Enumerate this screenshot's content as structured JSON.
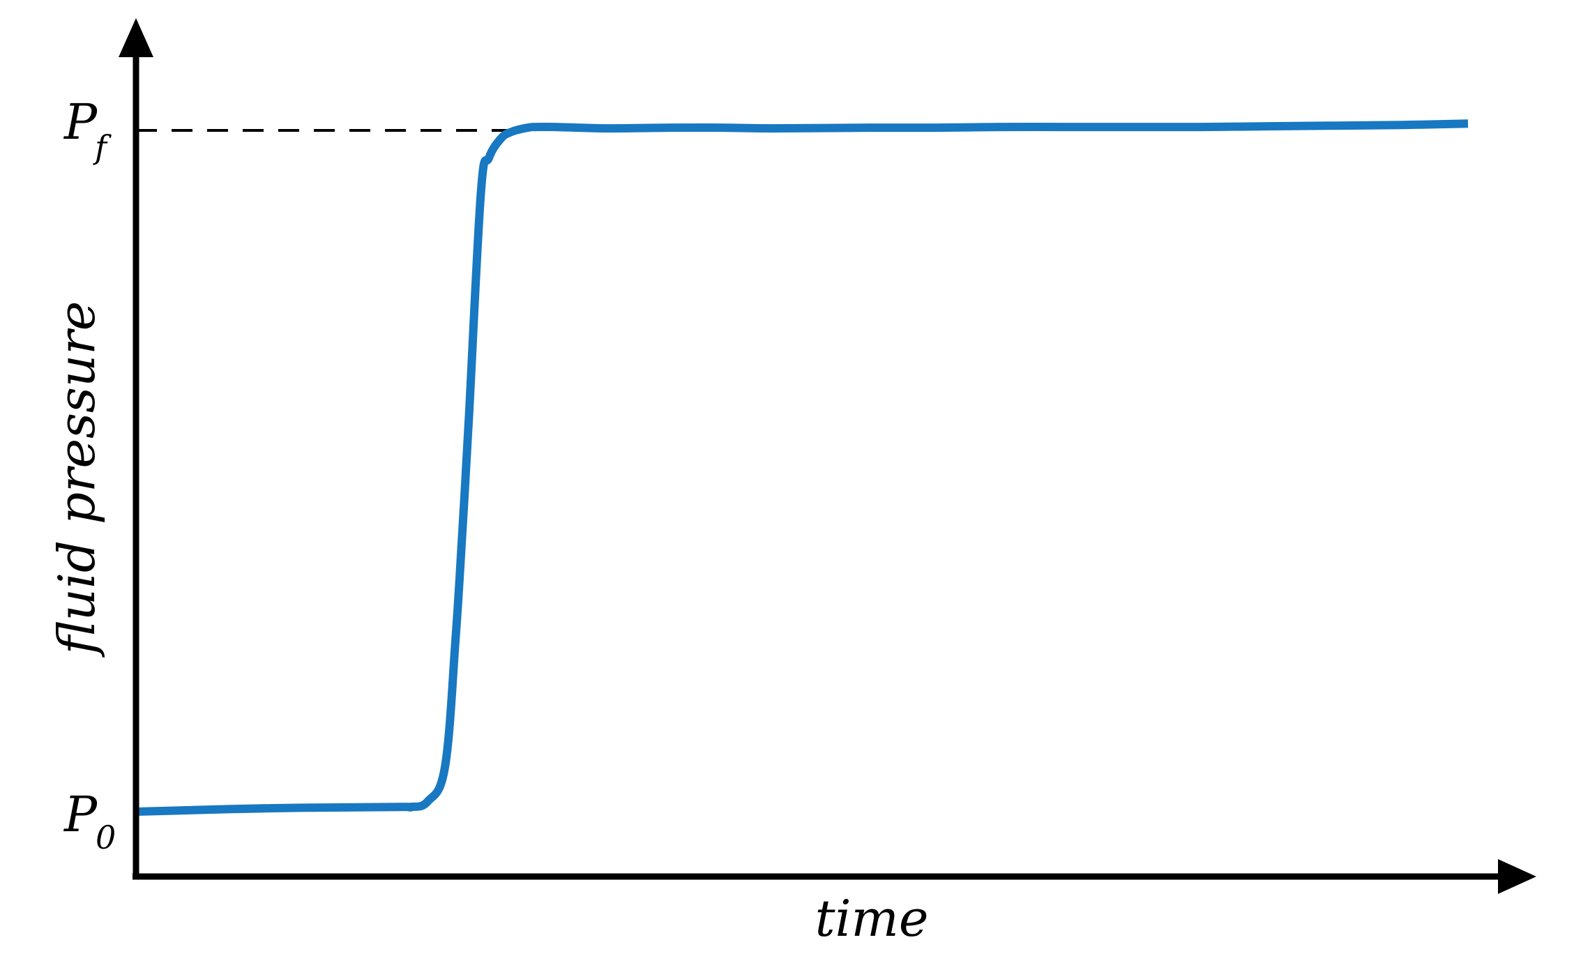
{
  "chart_data": {
    "type": "line",
    "title": "",
    "xlabel": "time",
    "ylabel": "fluid pressure",
    "xlim": [
      0,
      100
    ],
    "ylim": [
      0,
      100
    ],
    "grid": false,
    "legend": "none",
    "y_ticks": [
      {
        "base": "P",
        "sub": "0",
        "value": 0
      },
      {
        "base": "P",
        "sub": "f",
        "value": 100
      }
    ],
    "reference_lines": [
      {
        "orientation": "horizontal",
        "y": 100,
        "x_start": 0,
        "x_end": 29.5,
        "style": "dashed",
        "color": "#000000"
      }
    ],
    "series": [
      {
        "color": "#1878c2",
        "x": [
          0,
          10,
          19.6,
          20.6,
          21.9,
          23.2,
          24,
          24.5,
          25,
          25.9,
          26.5,
          27.4,
          28.2,
          29.4,
          30,
          31.5,
          33.2,
          35.7,
          40,
          44,
          47.6,
          55,
          60,
          65,
          70,
          75,
          80,
          85,
          90,
          95,
          100
        ],
        "y": [
          0,
          0.5,
          0.7,
          0.7,
          1.5,
          6.6,
          25.6,
          41.1,
          58.1,
          91,
          96,
          98.8,
          99.8,
          100.4,
          100.5,
          100.5,
          100.4,
          100.3,
          100.4,
          100.4,
          100.3,
          100.4,
          100.4,
          100.5,
          100.5,
          100.5,
          100.5,
          100.6,
          100.7,
          100.8,
          101
        ]
      }
    ]
  }
}
